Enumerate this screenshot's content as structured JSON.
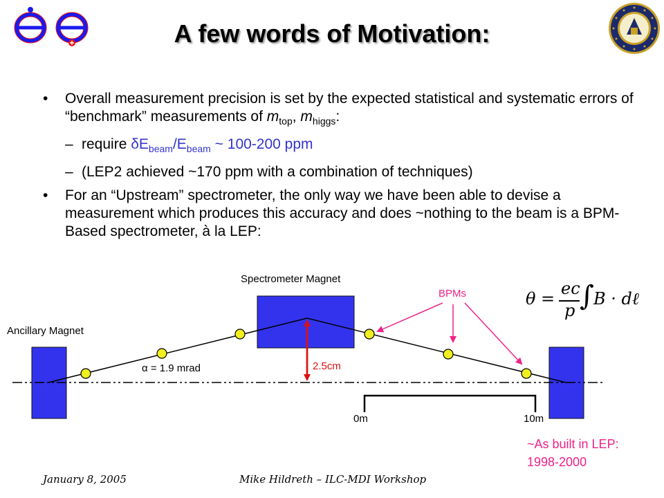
{
  "slide": {
    "title": "A few words of Motivation:",
    "bullet1": {
      "text_a": "Overall measurement precision is set by the expected statistical and systematic errors of “benchmark” measurements of ",
      "m1": "m",
      "m1_sub": "top",
      "sep": ", ",
      "m2": "m",
      "m2_sub": "higgs",
      "text_end": ":"
    },
    "sub1": {
      "text_a": "require ",
      "delta": "δ",
      "e1": "E",
      "e1_sub": "beam",
      "slash": "/E",
      "e2_sub": "beam",
      "text_b": " ~ 100-200 ppm"
    },
    "sub2": "(LEP2 achieved ~170 ppm with a combination of techniques)",
    "bullet2": "For an “Upstream” spectrometer, the only way we have been able to devise a measurement which produces this accuracy and does ~nothing to the beam is a BPM-Based spectrometer, à la LEP:"
  },
  "diagram": {
    "label_spectrometer": "Spectrometer Magnet",
    "label_ancillary": "Ancillary Magnet",
    "label_bpms": "BPMs",
    "label_alpha": "α = 1.9 mrad",
    "label_offset": "2.5cm",
    "label_0m": "0m",
    "label_10m": "10m",
    "formula": {
      "theta": "θ",
      "eq": "=",
      "num": "ec",
      "den": "p",
      "integral": "∫",
      "body": "B · dℓ"
    },
    "note_line1": "~As built in LEP:",
    "note_line2": "1998-2000"
  },
  "footer": {
    "date": "January 8, 2005",
    "presenter": "Mike Hildreth – ILC-MDI Workshop"
  },
  "colors": {
    "magnet": "#3333ee",
    "bpm": "#f0f020",
    "pink": "#ee2288",
    "offset_arrow": "#dd1111",
    "ee_logo_blue": "#1a1aee",
    "ee_logo_red": "#ee1111",
    "seal_blue": "#1c2a6b",
    "seal_gold": "#c9a227"
  }
}
